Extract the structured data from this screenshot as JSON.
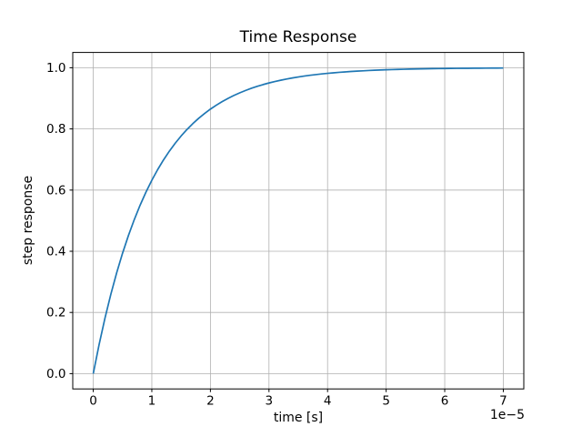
{
  "chart_data": {
    "type": "line",
    "title": "Time Response",
    "xlabel": "time [s]",
    "ylabel": "step response",
    "x_offset_label": "1e−5",
    "x_units_note": "x tick values are multiples of 1e-5 seconds",
    "xlim": [
      -0.35,
      7.35
    ],
    "ylim": [
      -0.05,
      1.05
    ],
    "xticks": [
      0,
      1,
      2,
      3,
      4,
      5,
      6,
      7
    ],
    "xtick_labels": [
      "0",
      "1",
      "2",
      "3",
      "4",
      "5",
      "6",
      "7"
    ],
    "yticks": [
      0.0,
      0.2,
      0.4,
      0.6,
      0.8,
      1.0
    ],
    "ytick_labels": [
      "0.0",
      "0.2",
      "0.4",
      "0.6",
      "0.8",
      "1.0"
    ],
    "grid": true,
    "legend": false,
    "line_color": "#1f77b4",
    "grid_color": "#b0b0b0",
    "spine_color": "#000000",
    "series": [
      {
        "name": "step response",
        "x": [
          0.0,
          0.1,
          0.2,
          0.3,
          0.4,
          0.5,
          0.6,
          0.7,
          0.8,
          0.9,
          1.0,
          1.1,
          1.2,
          1.3,
          1.4,
          1.5,
          1.6,
          1.7,
          1.8,
          1.9,
          2.0,
          2.1,
          2.2,
          2.3,
          2.4,
          2.5,
          2.6,
          2.7,
          2.8,
          2.9,
          3.0,
          3.1,
          3.2,
          3.3,
          3.4,
          3.5,
          3.6,
          3.7,
          3.8,
          3.9,
          4.0,
          4.1,
          4.2,
          4.3,
          4.4,
          4.5,
          4.6,
          4.7,
          4.8,
          4.9,
          5.0,
          5.1,
          5.2,
          5.3,
          5.4,
          5.5,
          5.6,
          5.7,
          5.8,
          5.9,
          6.0,
          6.1,
          6.2,
          6.3,
          6.4,
          6.5,
          6.6,
          6.7,
          6.8,
          6.9,
          7.0
        ],
        "y": [
          0.0,
          0.0952,
          0.1813,
          0.2592,
          0.3297,
          0.3935,
          0.4512,
          0.5034,
          0.5507,
          0.5934,
          0.6321,
          0.6671,
          0.6988,
          0.7275,
          0.7534,
          0.7769,
          0.7981,
          0.8173,
          0.8347,
          0.8504,
          0.8647,
          0.8775,
          0.8892,
          0.8997,
          0.9093,
          0.9179,
          0.9257,
          0.9328,
          0.9392,
          0.945,
          0.9502,
          0.955,
          0.9592,
          0.9631,
          0.9666,
          0.9698,
          0.9727,
          0.9753,
          0.9776,
          0.9798,
          0.9817,
          0.9834,
          0.985,
          0.9864,
          0.9877,
          0.9889,
          0.9899,
          0.9909,
          0.9918,
          0.9926,
          0.9933,
          0.9939,
          0.9945,
          0.995,
          0.9955,
          0.9959,
          0.9963,
          0.9967,
          0.997,
          0.9973,
          0.9975,
          0.9978,
          0.998,
          0.9982,
          0.9983,
          0.9985,
          0.9986,
          0.9988,
          0.9989,
          0.999,
          0.9991
        ]
      }
    ]
  }
}
